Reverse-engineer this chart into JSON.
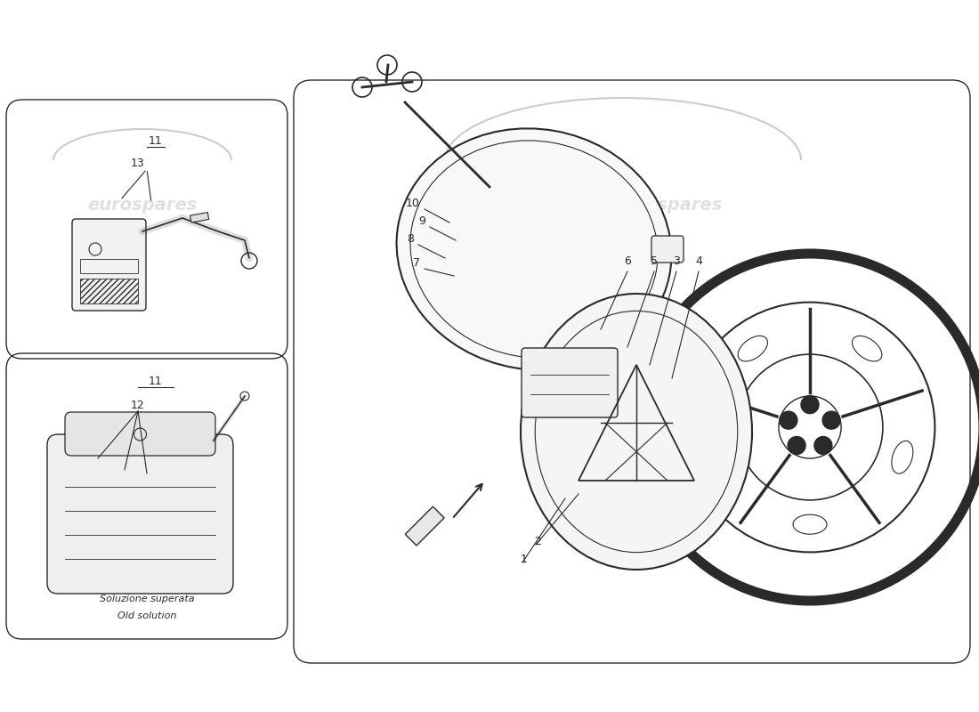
{
  "bg_color": "#ffffff",
  "line_color": "#2a2a2a",
  "watermark_color": "#cccccc",
  "watermark_text": "eurospares",
  "fig_width": 11.0,
  "fig_height": 8.0,
  "dpi": 100
}
